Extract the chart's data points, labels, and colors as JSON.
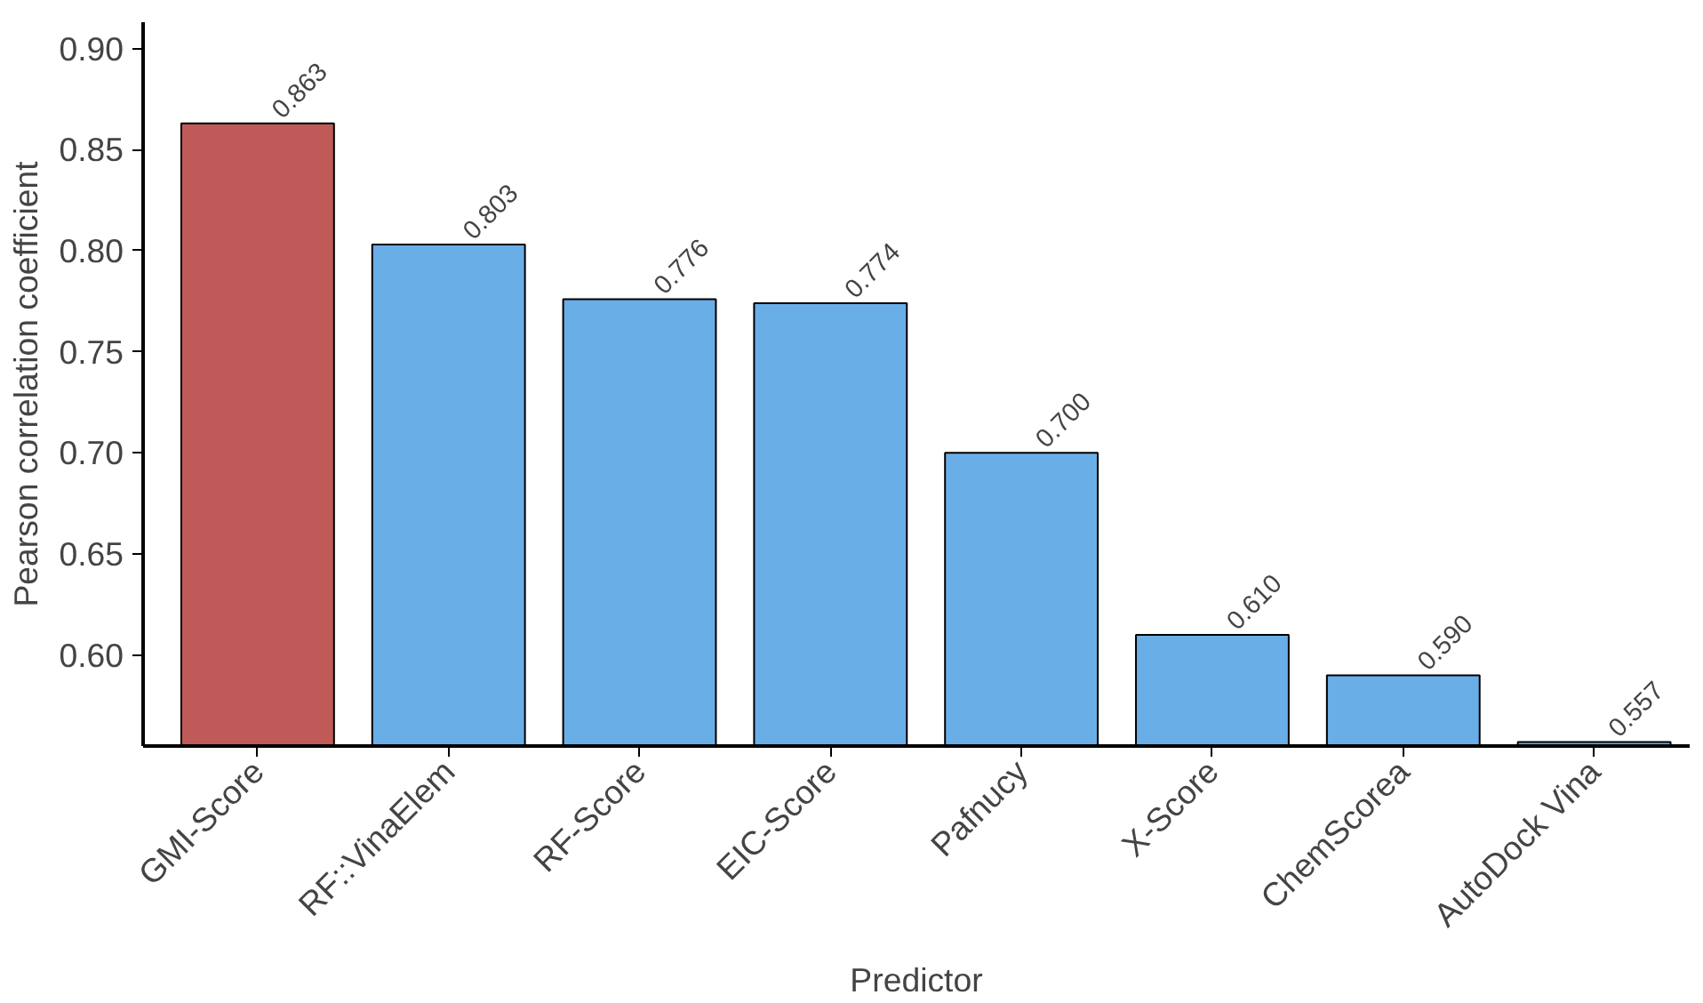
{
  "chart_data": {
    "type": "bar",
    "xlabel": "Predictor",
    "ylabel": "Pearson correlation coefficient",
    "categories": [
      "GMI-Score",
      "RF::VinaElem",
      "RF-Score",
      "EIC-Score",
      "Pafnucy",
      "X-Score",
      "ChemScorea",
      "AutoDock Vina"
    ],
    "values": [
      0.863,
      0.803,
      0.776,
      0.774,
      0.7,
      0.61,
      0.59,
      0.557
    ],
    "value_labels": [
      "0.863",
      "0.803",
      "0.776",
      "0.774",
      "0.700",
      "0.610",
      "0.590",
      "0.557"
    ],
    "colors": [
      "#c05a58",
      "#6aaee8",
      "#6aaee8",
      "#6aaee8",
      "#6aaee8",
      "#6aaee8",
      "#6aaee8",
      "#6aaee8"
    ],
    "ylim": [
      0.555,
      0.913
    ],
    "yticks": [
      {
        "value": 0.6,
        "label": "0.60"
      },
      {
        "value": 0.65,
        "label": "0.65"
      },
      {
        "value": 0.7,
        "label": "0.70"
      },
      {
        "value": 0.75,
        "label": "0.75"
      },
      {
        "value": 0.8,
        "label": "0.80"
      },
      {
        "value": 0.85,
        "label": "0.85"
      },
      {
        "value": 0.9,
        "label": "0.90"
      }
    ],
    "grid": false
  }
}
